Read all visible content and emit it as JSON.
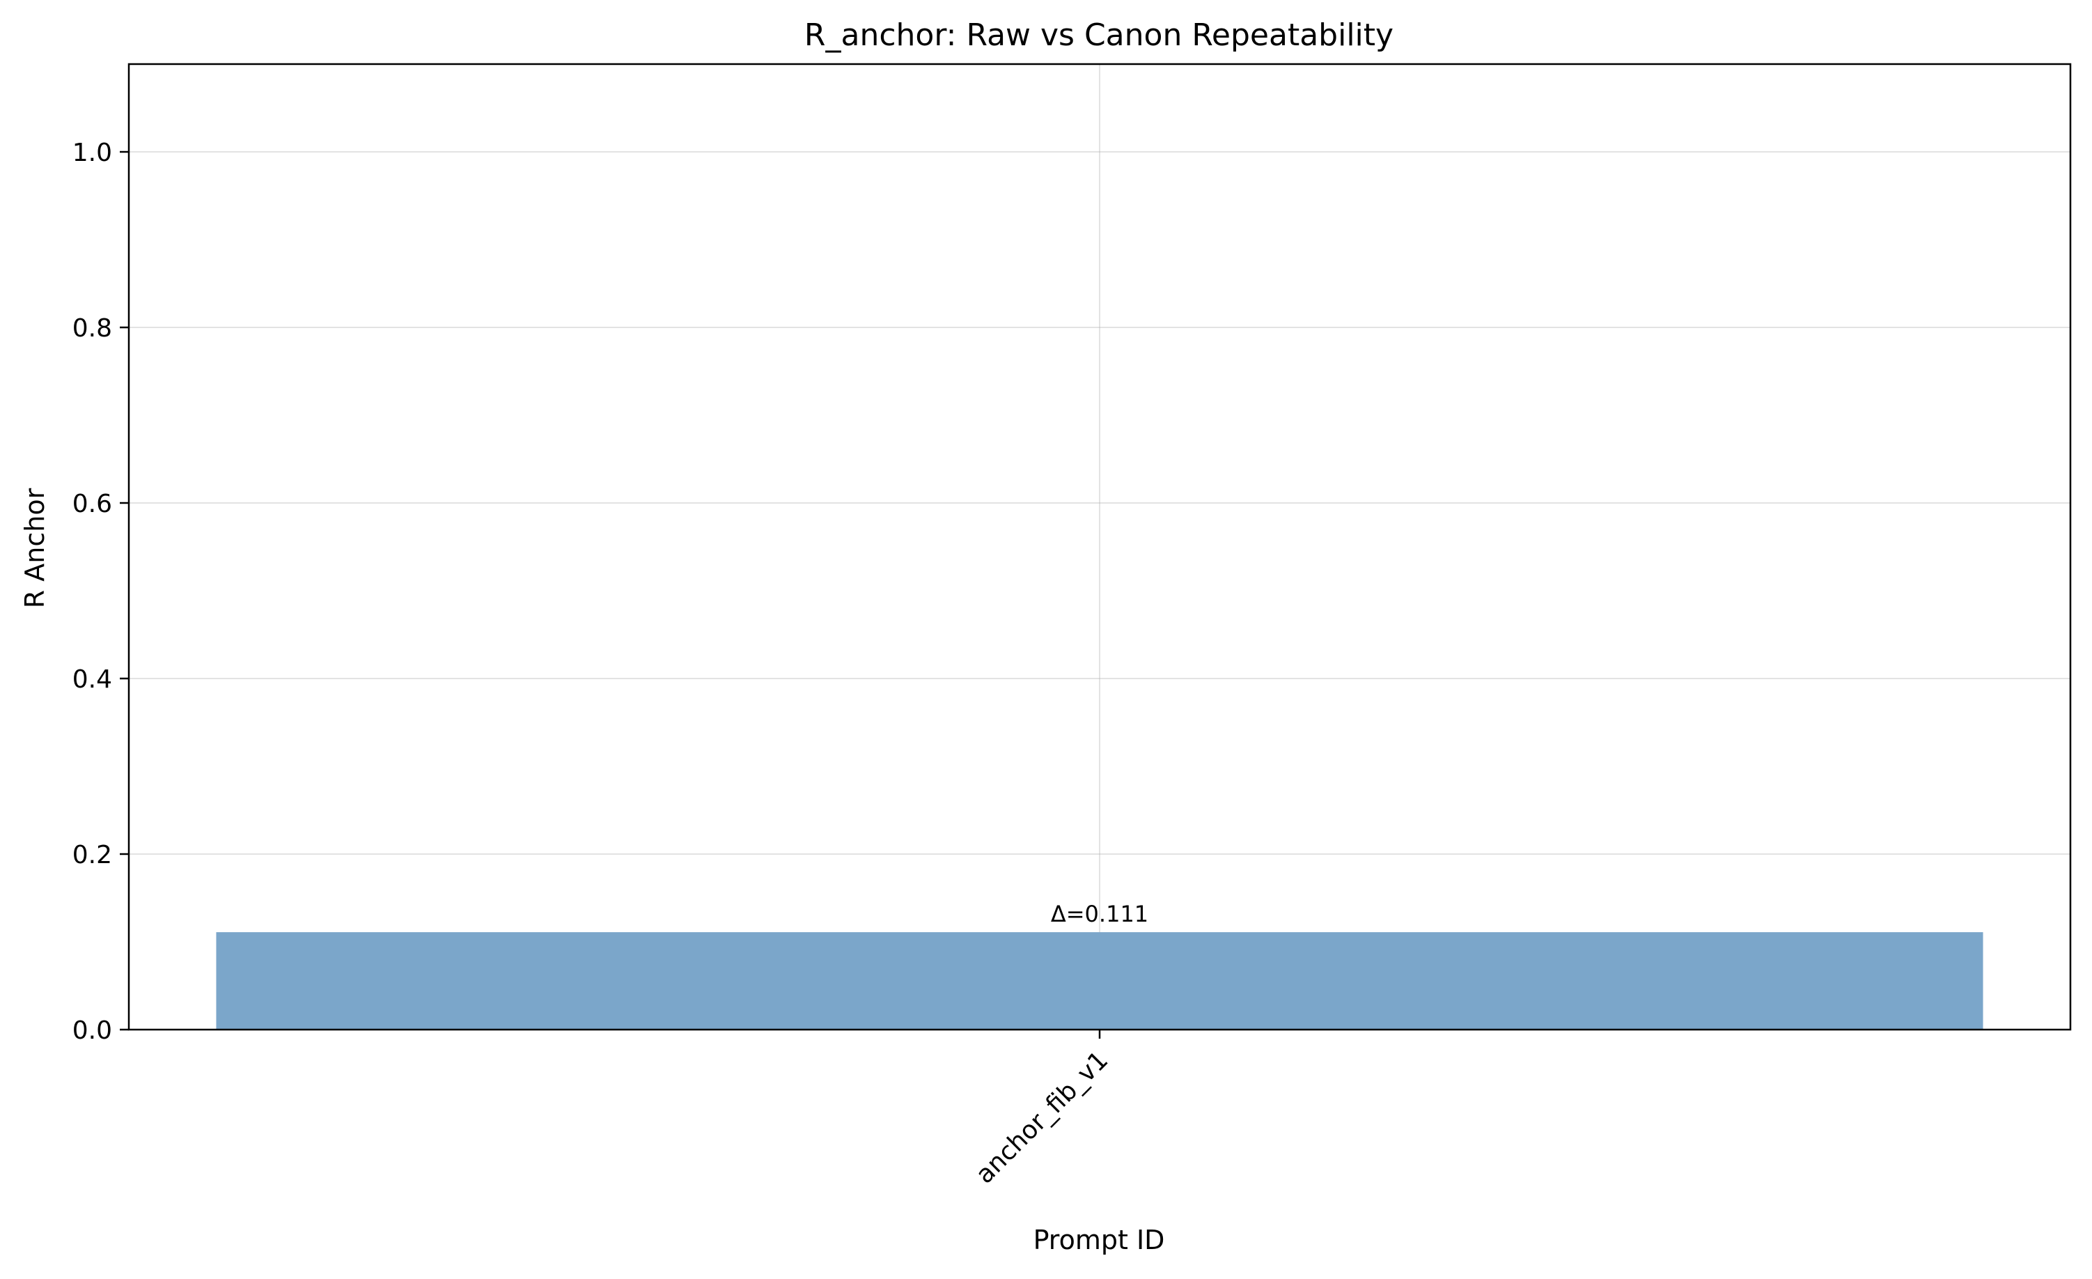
{
  "chart_data": {
    "type": "bar",
    "title": "R_anchor: Raw vs Canon Repeatability",
    "xlabel": "Prompt ID",
    "ylabel": "R Anchor",
    "categories": [
      "anchor_fib_v1"
    ],
    "series": [
      {
        "values": [
          0.111
        ],
        "color": "#7ba6ca"
      }
    ],
    "annotations": [
      "Δ=0.111"
    ],
    "ylim": [
      0,
      1.1
    ],
    "yticks": [
      0.0,
      0.2,
      0.4,
      0.6,
      0.8,
      1.0
    ],
    "ytick_labels": [
      "0.0",
      "0.2",
      "0.4",
      "0.6",
      "0.8",
      "1.0"
    ],
    "grid": true,
    "x_tick_rotation_deg": 45
  }
}
